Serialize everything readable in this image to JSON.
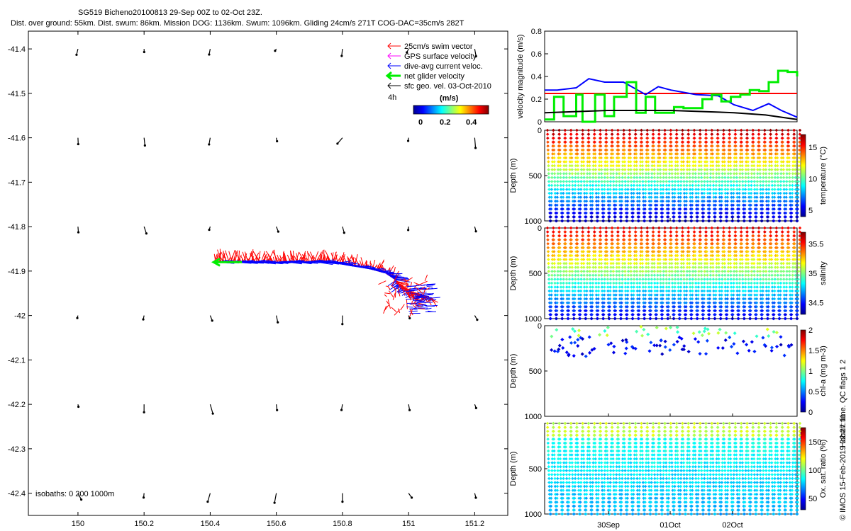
{
  "header": {
    "title": "SG519 Bicheno20100813 29-Sep 00Z to 02-Oct 23Z.",
    "subtitle": "Dist. over ground: 55km. Dist. swum: 86km. Mission DOG: 1136km. Swum: 1096km. Gliding 24cm/s 271T COG-DAC=35cm/s 282T"
  },
  "colors": {
    "swim": "#ff0000",
    "gps": "#ff00ff",
    "dac": "#0000ff",
    "net": "#00ee00",
    "geo": "#000000"
  },
  "chart_data": [
    {
      "type": "scatter",
      "panel": "map",
      "xlabel": "",
      "ylabel": "",
      "xlim": [
        149.85,
        151.3
      ],
      "ylim": [
        -42.45,
        -41.36
      ],
      "x_ticks": [
        150,
        150.2,
        150.4,
        150.6,
        150.8,
        151,
        151.2
      ],
      "x_tick_labels": [
        "150",
        "150.2",
        "150.4",
        "150.6",
        "150.8",
        "151",
        "151.2"
      ],
      "y_ticks": [
        -41.4,
        -41.5,
        -41.6,
        -41.7,
        -41.8,
        -41.9,
        -42,
        -42.1,
        -42.2,
        -42.3,
        -42.4
      ],
      "y_tick_labels": [
        "-41.4",
        "-41.5",
        "-41.6",
        "-41.7",
        "-41.8",
        "-41.9",
        "-42",
        "-42.1",
        "-42.2",
        "-42.3",
        "-42.4"
      ],
      "legend": {
        "placement": "top-right",
        "entries": [
          "25cm/s swim vector",
          "GPS surface velocity",
          "dive-avg current veloc.",
          "net glider velocity",
          "sfc geo. vel. 03-Oct-2010"
        ],
        "duration": "4h",
        "colorbar_title": "(m/s)",
        "colorbar_ticks": [
          "0",
          "0.2",
          "0.4"
        ]
      },
      "isobath_label": "isobaths: 0   200  1000m",
      "track": {
        "lon": [
          151.07,
          151.02,
          150.98,
          150.96,
          150.93,
          150.88,
          150.84,
          150.8,
          150.76,
          150.72,
          150.68,
          150.64,
          150.6,
          150.56,
          150.52,
          150.48,
          150.44,
          150.41
        ],
        "lat": [
          -41.96,
          -41.95,
          -41.935,
          -41.92,
          -41.905,
          -41.895,
          -41.89,
          -41.885,
          -41.88,
          -41.88,
          -41.88,
          -41.88,
          -41.88,
          -41.88,
          -41.88,
          -41.88,
          -41.88,
          -41.88
        ]
      },
      "geo_vectors_lon": [
        150,
        150.2,
        150.4,
        150.6,
        150.8,
        151,
        151.2
      ],
      "geo_vectors_lat": [
        -41.4,
        -41.6,
        -41.8,
        -42,
        -42.2,
        -42.4
      ]
    },
    {
      "type": "line",
      "panel": "velocity",
      "ylabel": "velocity magnitude (m/s)",
      "xlim": [
        0,
        4
      ],
      "ylim": [
        0,
        0.8
      ],
      "y_ticks": [
        "0",
        "0.2",
        "0.4",
        "0.6",
        "0.8"
      ],
      "series": [
        {
          "name": "swim",
          "color": "#ff0000",
          "x": [
            0,
            4
          ],
          "y": [
            0.25,
            0.25
          ]
        },
        {
          "name": "dive-avg current",
          "color": "#0000ff",
          "x": [
            0,
            0.2,
            0.5,
            0.7,
            0.95,
            1.25,
            1.6,
            1.8,
            2.0,
            2.4,
            2.75,
            3.0,
            3.3,
            3.55,
            3.75,
            4.0
          ],
          "y": [
            0.28,
            0.28,
            0.3,
            0.38,
            0.35,
            0.35,
            0.24,
            0.31,
            0.28,
            0.24,
            0.23,
            0.15,
            0.1,
            0.16,
            0.1,
            0.04
          ]
        },
        {
          "name": "net glider",
          "color": "#00ee00",
          "x": [
            0,
            0.15,
            0.3,
            0.5,
            0.6,
            0.8,
            0.95,
            1.1,
            1.3,
            1.45,
            1.6,
            1.75,
            1.9,
            2.05,
            2.2,
            2.35,
            2.5,
            2.65,
            2.8,
            2.95,
            3.1,
            3.25,
            3.4,
            3.55,
            3.7,
            3.85,
            4.0
          ],
          "y": [
            0.02,
            0.22,
            0.05,
            0.24,
            0.0,
            0.24,
            0.05,
            0.22,
            0.35,
            0.08,
            0.22,
            0.08,
            0.08,
            0.13,
            0.12,
            0.12,
            0.2,
            0.24,
            0.18,
            0.22,
            0.24,
            0.28,
            0.27,
            0.35,
            0.45,
            0.44,
            0.4
          ]
        },
        {
          "name": "surface geo",
          "color": "#000000",
          "x": [
            0,
            1.0,
            2.0,
            3.0,
            3.5,
            4.0
          ],
          "y": [
            0.08,
            0.1,
            0.1,
            0.08,
            0.06,
            0.02
          ]
        }
      ]
    },
    {
      "type": "scatter",
      "panel": "temperature",
      "ylabel": "Depth (m)",
      "ylim": [
        1000,
        0
      ],
      "y_ticks": [
        "0",
        "500",
        "1000"
      ],
      "colorbar_label": "temperature (°C)",
      "colorbar_ticks": [
        "5",
        "10",
        "15"
      ],
      "colorbar_range": [
        4,
        17
      ],
      "dives": 43
    },
    {
      "type": "scatter",
      "panel": "salinity",
      "ylabel": "Depth (m)",
      "ylim": [
        1000,
        0
      ],
      "y_ticks": [
        "0",
        "500",
        "1000"
      ],
      "colorbar_label": "salinity",
      "colorbar_ticks": [
        "34.5",
        "35",
        "35.5"
      ],
      "colorbar_range": [
        34.3,
        35.7
      ],
      "dives": 43
    },
    {
      "type": "scatter",
      "panel": "chl-a",
      "ylabel": "Depth (m)",
      "ylim": [
        1000,
        0
      ],
      "y_ticks": [
        "0",
        "500",
        "1000"
      ],
      "colorbar_label": "chl-a (mg m-3)",
      "colorbar_ticks": [
        "0",
        "0.5",
        "1",
        "1.5",
        "2"
      ],
      "colorbar_range": [
        0,
        2
      ]
    },
    {
      "type": "scatter",
      "panel": "oxygen",
      "ylabel": "Depth (m)",
      "ylim": [
        1000,
        0
      ],
      "y_ticks": [
        "500",
        "1000"
      ],
      "colorbar_label": "Ox. sat. ratio (%)",
      "colorbar_ticks": [
        "50",
        "100",
        "150"
      ],
      "colorbar_range": [
        30,
        175
      ],
      "x_tick_labels": [
        "30Sep",
        "01Oct",
        "02Oct"
      ],
      "dives": 43
    }
  ],
  "side_labels": {
    "qc": "Hobart time. QC flags 1  2",
    "copyright": "© IMOS 15-Feb-2019 02:27:11"
  }
}
